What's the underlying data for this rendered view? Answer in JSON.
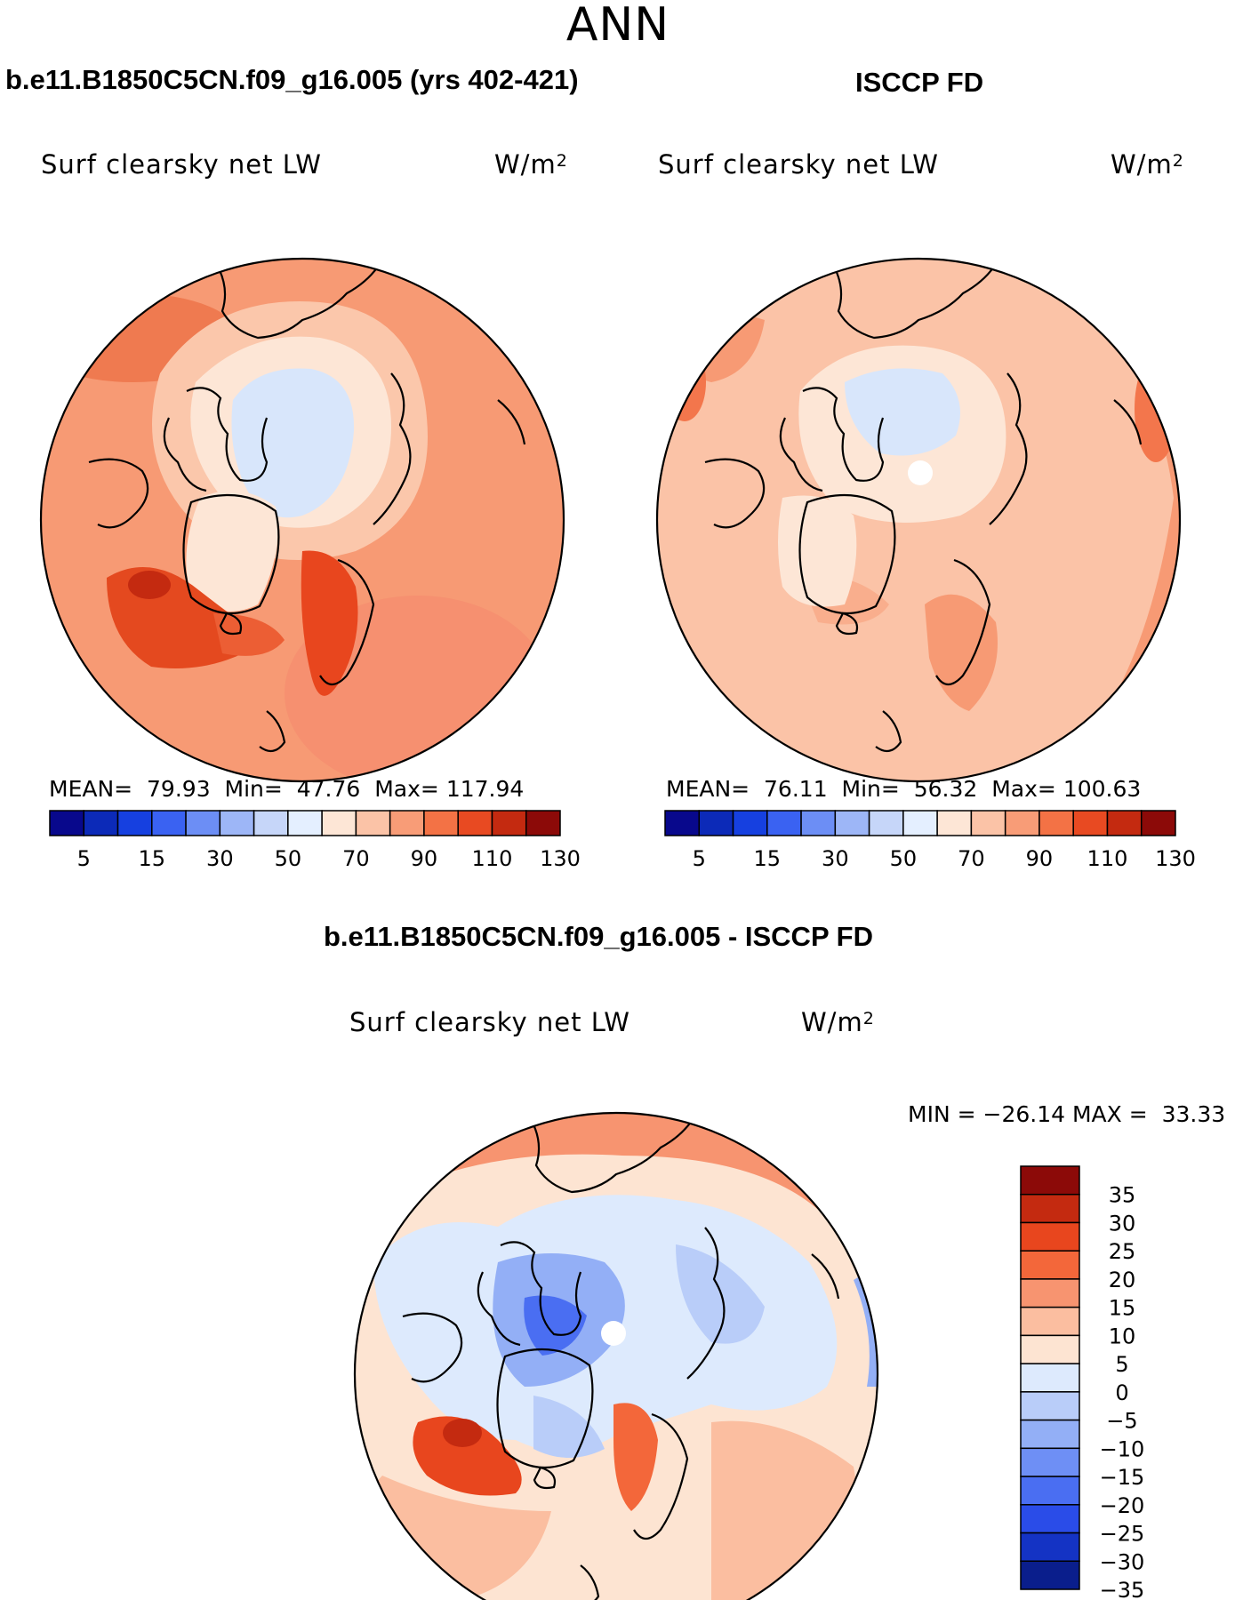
{
  "season": "ANN",
  "panels": [
    {
      "id": "model",
      "title": "b.e11.B1850C5CN.f09_g16.005 (yrs 402-421)",
      "variable": "Surf clearsky net LW",
      "units_base": "W/m",
      "units_exp": "2",
      "stats": {
        "mean_label": "MEAN=",
        "mean": "79.93",
        "min_label": "Min=",
        "min": "47.76",
        "max_label": "Max=",
        "max": "117.94"
      },
      "colorbar_ticks": [
        "5",
        "15",
        "30",
        "50",
        "70",
        "90",
        "110",
        "130"
      ]
    },
    {
      "id": "obs",
      "title": "ISCCP FD",
      "variable": "Surf clearsky net LW",
      "units_base": "W/m",
      "units_exp": "2",
      "stats": {
        "mean_label": "MEAN=",
        "mean": "76.11",
        "min_label": "Min=",
        "min": "56.32",
        "max_label": "Max=",
        "max": "100.63"
      },
      "colorbar_ticks": [
        "5",
        "15",
        "30",
        "50",
        "70",
        "90",
        "110",
        "130"
      ]
    },
    {
      "id": "diff",
      "title": "b.e11.B1850C5CN.f09_g16.005 - ISCCP FD",
      "variable": "Surf clearsky net LW",
      "units_base": "W/m",
      "units_exp": "2",
      "minmax": {
        "min_label": "MIN =",
        "min": "−26.14",
        "max_label": "MAX =",
        "max": "33.33"
      },
      "colorbar_ticks": [
        "35",
        "30",
        "25",
        "20",
        "15",
        "10",
        "5",
        "0",
        "−5",
        "−10",
        "−15",
        "−20",
        "−25",
        "−30",
        "−35"
      ]
    }
  ],
  "colors": {
    "abs_scale": [
      "#08088c",
      "#0c2ab8",
      "#1640e0",
      "#3a62f2",
      "#6c8ef5",
      "#9db6f7",
      "#c6d6f9",
      "#e4efff",
      "#fde6d6",
      "#fbc3a7",
      "#f89c77",
      "#f37245",
      "#e84a22",
      "#c42a10",
      "#8c0a08"
    ],
    "diff_scale": [
      "#8c0a08",
      "#c42a10",
      "#e8461e",
      "#f3673a",
      "#f79470",
      "#fbbea0",
      "#fde4d2",
      "#ddeafd",
      "#b9cdf9",
      "#93aff6",
      "#6e8ff5",
      "#4a6ef2",
      "#2a4ce8",
      "#1433c4",
      "#0a1e8c"
    ]
  }
}
